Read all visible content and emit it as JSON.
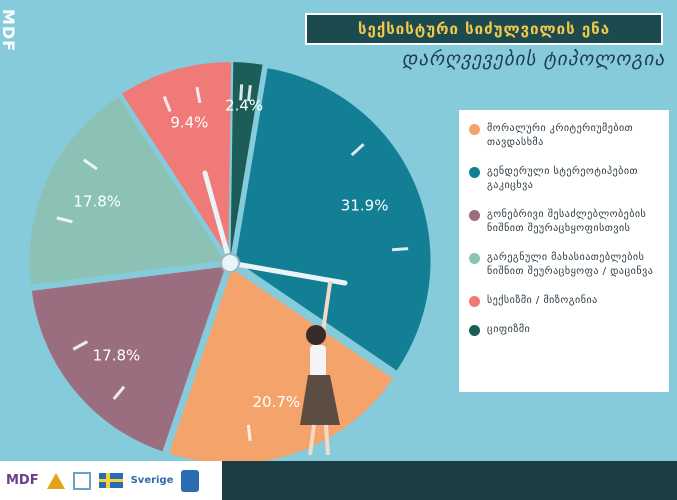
{
  "brand": {
    "side_label": "MDF"
  },
  "header": {
    "title": "სექსისტური სიძულვილის ენა",
    "subtitle": "დარღვევების ტიპოლოგია"
  },
  "chart_data": {
    "type": "pie",
    "title": "სექსისტური სიძულვილის ენა",
    "subtitle": "დარღვევების ტიპოლოგია",
    "legend_position": "right",
    "slices": [
      {
        "label": "გენდერული სტერეოტიპებით გაკიცხვა",
        "value": 31.9,
        "display": "31.9%",
        "color": "#137f95"
      },
      {
        "label": "მორალური კრიტერიუმებით თავდასხმა",
        "value": 20.7,
        "display": "20.7%",
        "color": "#f4a36b"
      },
      {
        "label": "გონებრივი შესაძლებლობების ნიშნით შეურაცხყოფისთვის",
        "value": 17.8,
        "display": "17.8%",
        "color": "#9a6e7f"
      },
      {
        "label": "გარეგნული მახასიათებლების ნიშნით შეურაცხყოფა / დაცინვა",
        "value": 17.8,
        "display": "17.8%",
        "color": "#8cc2b5"
      },
      {
        "label": "სექსიზმი / მიზოგინია",
        "value": 9.4,
        "display": "9.4%",
        "color": "#ef7a78"
      },
      {
        "label": "ციფიზმი",
        "value": 2.4,
        "display": "2.4%",
        "color": "#1c5e57"
      }
    ]
  },
  "legend": [
    {
      "label": "მორალური კრიტერიუმებით თავდასხმა",
      "color": "#f4a36b"
    },
    {
      "label": "გენდერული სტერეოტიპებით გაკიცხვა",
      "color": "#137f95"
    },
    {
      "label": "გონებრივი შესაძლებლობების ნიშნით შეურაცხყოფისთვის",
      "color": "#9a6e7f"
    },
    {
      "label": "გარეგნული მახასიათებლების ნიშნით შეურაცხყოფა / დაცინვა",
      "color": "#8cc2b5"
    },
    {
      "label": "სექსიზმი / მიზოგინია",
      "color": "#ef7a78"
    },
    {
      "label": "ციფიზმი",
      "color": "#1c5e57"
    }
  ],
  "footer": {
    "logos": [
      {
        "name": "MDF",
        "text": "MDF"
      },
      {
        "name": "Sweden",
        "text": "Sverige"
      }
    ]
  }
}
